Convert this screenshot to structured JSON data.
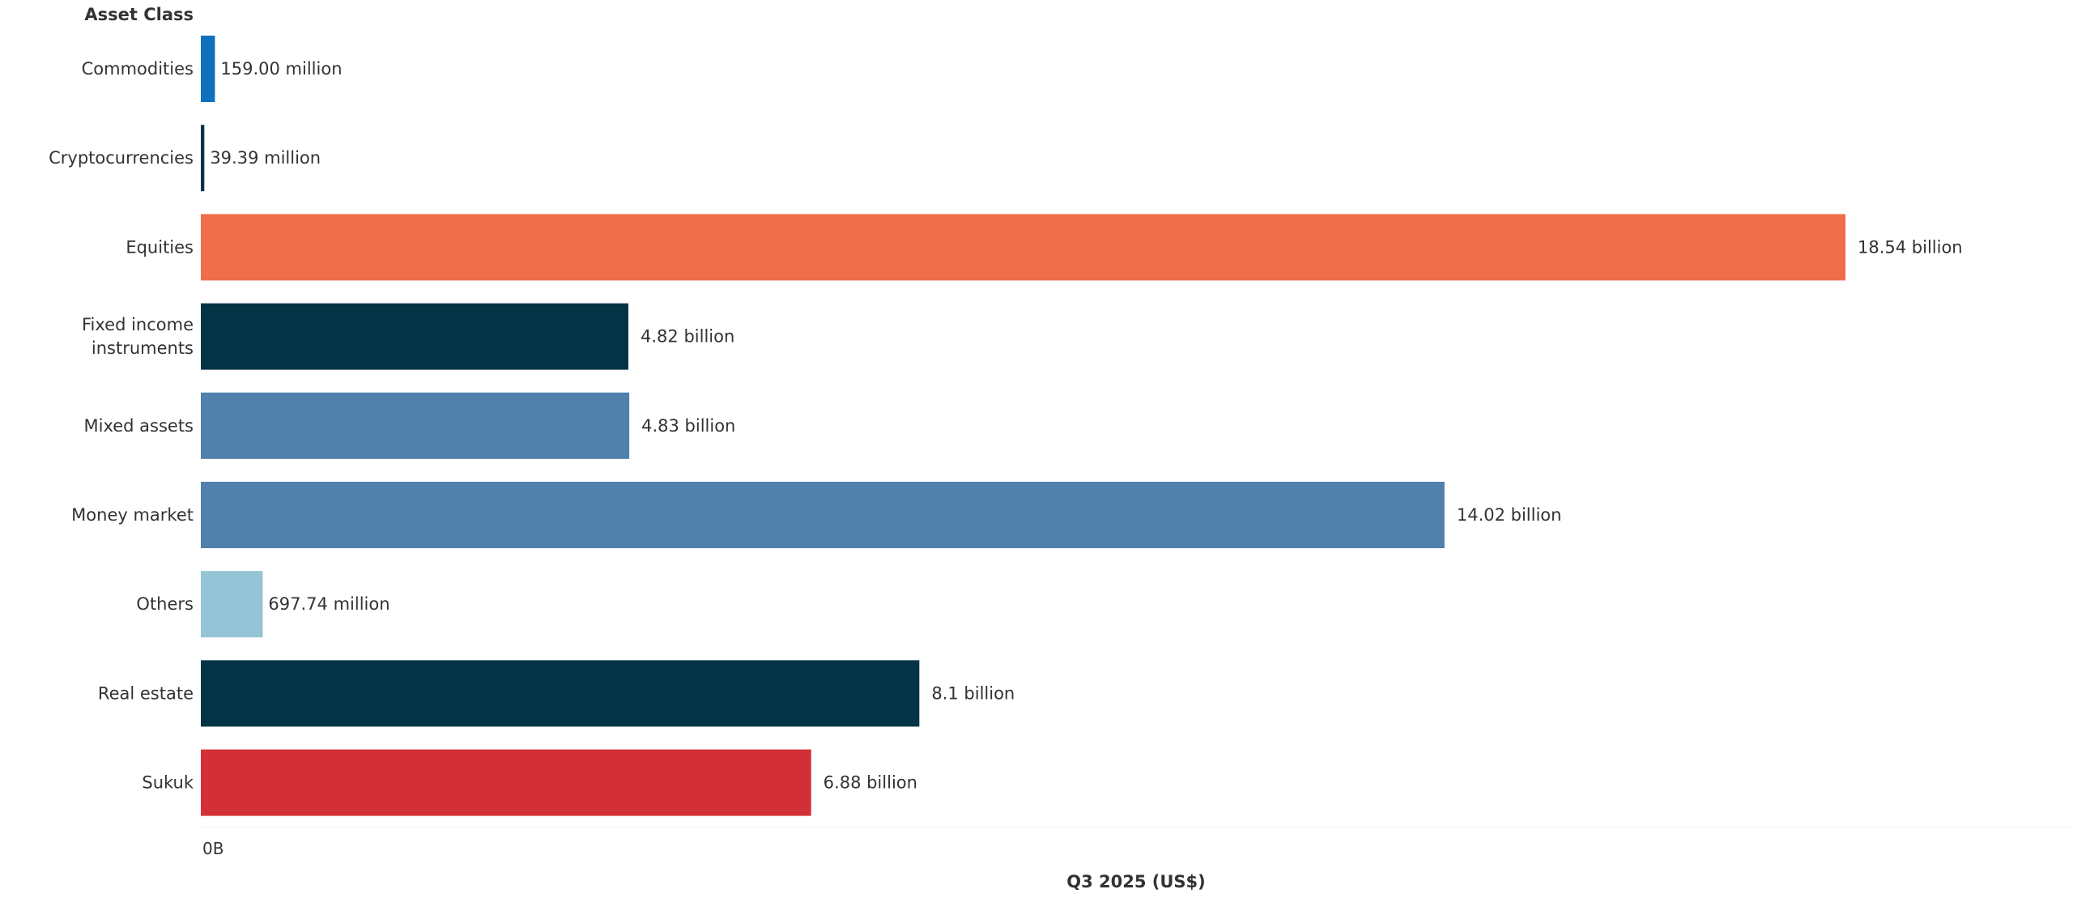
{
  "chart_data": {
    "type": "bar",
    "orientation": "horizontal",
    "category_header": "Asset Class",
    "xlabel": "Q3 2025 (US$)",
    "x_tick_labels": [
      "0B"
    ],
    "xlim": [
      0,
      19.5
    ],
    "unit": "billion",
    "categories": [
      "Commodities",
      "Cryptocurrencies",
      "Equities",
      "Fixed income instruments",
      "Mixed assets",
      "Money market",
      "Others",
      "Real estate",
      "Sukuk"
    ],
    "category_lines": [
      [
        "Commodities"
      ],
      [
        "Cryptocurrencies"
      ],
      [
        "Equities"
      ],
      [
        "Fixed income",
        "instruments"
      ],
      [
        "Mixed assets"
      ],
      [
        "Money market"
      ],
      [
        "Others"
      ],
      [
        "Real estate"
      ],
      [
        "Sukuk"
      ]
    ],
    "values": [
      0.159,
      0.03939,
      18.54,
      4.82,
      4.83,
      14.02,
      0.69774,
      8.1,
      6.88
    ],
    "value_labels": [
      "159.00 million",
      "39.39 million",
      "18.54 billion",
      "4.82 billion",
      "4.83 billion",
      "14.02 billion",
      "697.74 million",
      "8.1 billion",
      "6.88 billion"
    ],
    "colors": [
      "#0f70bd",
      "#05344a",
      "#f06d4a",
      "#023445",
      "#5080ab",
      "#5080ab",
      "#94c4d5",
      "#023445",
      "#d23036"
    ],
    "grid": false,
    "legend": "none"
  }
}
